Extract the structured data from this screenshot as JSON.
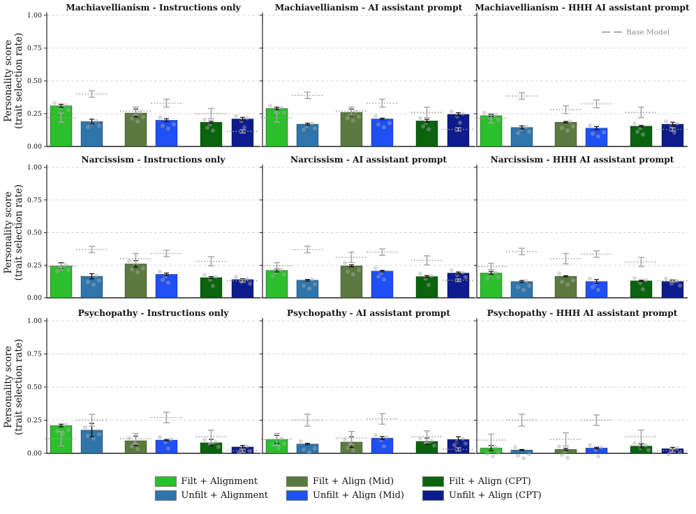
{
  "figure": {
    "background": "#ffffff",
    "ylabel_line1": "Personality score",
    "ylabel_line2": "(trait selection rate)",
    "base_model_legend_label": "Base Model",
    "ytick_labels": [
      "0.00",
      "0.25",
      "0.50",
      "0.75",
      "1.00"
    ],
    "grid_color": "#d9d9d9",
    "base_marker_color": "#999999",
    "errorbar_color": "#111111",
    "scatter_color": "#aaaaaa"
  },
  "legend": {
    "entries": [
      {
        "label": "Filt + Alignment",
        "color": "#2dbe2d"
      },
      {
        "label": "Unfilt + Alignment",
        "color": "#2f75ab"
      },
      {
        "label": "Filt + Align (Mid)",
        "color": "#5c7a40"
      },
      {
        "label": "Unfilt + Align (Mid)",
        "color": "#1e50f5"
      },
      {
        "label": "Filt + Align (CPT)",
        "color": "#0a640e"
      },
      {
        "label": "Unfilt + Align (CPT)",
        "color": "#0d1c8c"
      }
    ]
  },
  "chart_data": {
    "type": "bar",
    "grid": true,
    "ylim": [
      0,
      1
    ],
    "yticks": [
      0,
      0.25,
      0.5,
      0.75,
      1.0
    ],
    "ylabel": "Personality score (trait selection rate)",
    "series_names": [
      "Filt + Alignment",
      "Unfilt + Alignment",
      "Filt + Align (Mid)",
      "Unfilt + Align (Mid)",
      "Filt + Align (CPT)",
      "Unfilt + Align (CPT)"
    ],
    "series_colors": [
      "#2dbe2d",
      "#2f75ab",
      "#5c7a40",
      "#1e50f5",
      "#0a640e",
      "#0d1c8c"
    ],
    "base_model": {
      "legend_label": "Base Model",
      "style": "dashed-gray-marker-per-bar"
    },
    "subplots": [
      {
        "row": 0,
        "col": 0,
        "title": "Machiavellianism - Instructions only",
        "values": [
          0.31,
          0.19,
          0.255,
          0.2,
          0.185,
          0.21
        ],
        "errors": [
          0.012,
          0.018,
          0.03,
          0.012,
          0.008,
          0.012
        ],
        "base_values": [
          0.22,
          0.4,
          0.27,
          0.33,
          0.25,
          0.115
        ],
        "base_errors": [
          0.035,
          0.025,
          0.03,
          0.03,
          0.04,
          0.012
        ]
      },
      {
        "row": 0,
        "col": 1,
        "title": "Machiavellianism - AI assistant prompt",
        "values": [
          0.29,
          0.17,
          0.26,
          0.21,
          0.195,
          0.245
        ],
        "errors": [
          0.01,
          0.008,
          0.025,
          0.006,
          0.012,
          0.012
        ],
        "base_values": [
          0.22,
          0.39,
          0.27,
          0.33,
          0.26,
          0.13
        ],
        "base_errors": [
          0.035,
          0.025,
          0.03,
          0.03,
          0.04,
          0.012
        ]
      },
      {
        "row": 0,
        "col": 2,
        "title": "Machiavellianism - HHH AI assistant prompt",
        "values": [
          0.235,
          0.145,
          0.185,
          0.14,
          0.155,
          0.17
        ],
        "errors": [
          0.008,
          0.012,
          0.006,
          0.012,
          0.006,
          0.015
        ],
        "base_values": [
          0.215,
          0.385,
          0.28,
          0.325,
          0.26,
          0.13
        ],
        "base_errors": [
          0.035,
          0.025,
          0.03,
          0.03,
          0.04,
          0.012
        ]
      },
      {
        "row": 1,
        "col": 0,
        "title": "Narcissism - Instructions only",
        "values": [
          0.245,
          0.165,
          0.26,
          0.18,
          0.155,
          0.14
        ],
        "errors": [
          0.025,
          0.02,
          0.025,
          0.01,
          0.008,
          0.006
        ],
        "base_values": [
          0.24,
          0.37,
          0.3,
          0.34,
          0.28,
          0.13
        ],
        "base_errors": [
          0.025,
          0.025,
          0.04,
          0.025,
          0.035,
          0.01
        ]
      },
      {
        "row": 1,
        "col": 1,
        "title": "Narcissism - AI assistant prompt",
        "values": [
          0.21,
          0.135,
          0.245,
          0.205,
          0.163,
          0.19
        ],
        "errors": [
          0.012,
          0.006,
          0.008,
          0.006,
          0.008,
          0.008
        ],
        "base_values": [
          0.245,
          0.37,
          0.31,
          0.35,
          0.287,
          0.135
        ],
        "base_errors": [
          0.025,
          0.025,
          0.04,
          0.025,
          0.035,
          0.01
        ]
      },
      {
        "row": 1,
        "col": 2,
        "title": "Narcissism - HHH AI assistant prompt",
        "values": [
          0.19,
          0.125,
          0.165,
          0.125,
          0.13,
          0.125
        ],
        "errors": [
          0.012,
          0.008,
          0.004,
          0.015,
          0.005,
          0.008
        ],
        "base_values": [
          0.24,
          0.355,
          0.3,
          0.335,
          0.275,
          0.13
        ],
        "base_errors": [
          0.025,
          0.025,
          0.04,
          0.025,
          0.035,
          0.01
        ]
      },
      {
        "row": 2,
        "col": 0,
        "title": "Psychopathy - Instructions only",
        "values": [
          0.21,
          0.175,
          0.095,
          0.1,
          0.08,
          0.048
        ],
        "errors": [
          0.01,
          0.05,
          0.035,
          0.005,
          0.025,
          0.012
        ],
        "base_values": [
          0.11,
          0.25,
          0.11,
          0.27,
          0.125,
          0.02
        ],
        "base_errors": [
          0.055,
          0.045,
          0.04,
          0.04,
          0.05,
          0.012
        ]
      },
      {
        "row": 2,
        "col": 1,
        "title": "Psychopathy - AI assistant prompt",
        "values": [
          0.105,
          0.07,
          0.085,
          0.115,
          0.09,
          0.105
        ],
        "errors": [
          0.03,
          0.006,
          0.04,
          0.012,
          0.025,
          0.02
        ],
        "base_values": [
          0.105,
          0.25,
          0.115,
          0.26,
          0.125,
          0.03
        ],
        "base_errors": [
          0.045,
          0.045,
          0.05,
          0.04,
          0.045,
          0.012
        ]
      },
      {
        "row": 2,
        "col": 2,
        "title": "Psychopathy - HHH AI assistant prompt",
        "values": [
          0.04,
          0.025,
          0.03,
          0.04,
          0.055,
          0.035
        ],
        "errors": [
          0.02,
          0.004,
          0.008,
          0.006,
          0.015,
          0.01
        ],
        "base_values": [
          0.1,
          0.25,
          0.105,
          0.25,
          0.125,
          0.02
        ],
        "base_errors": [
          0.045,
          0.045,
          0.05,
          0.04,
          0.05,
          0.012
        ]
      }
    ]
  }
}
